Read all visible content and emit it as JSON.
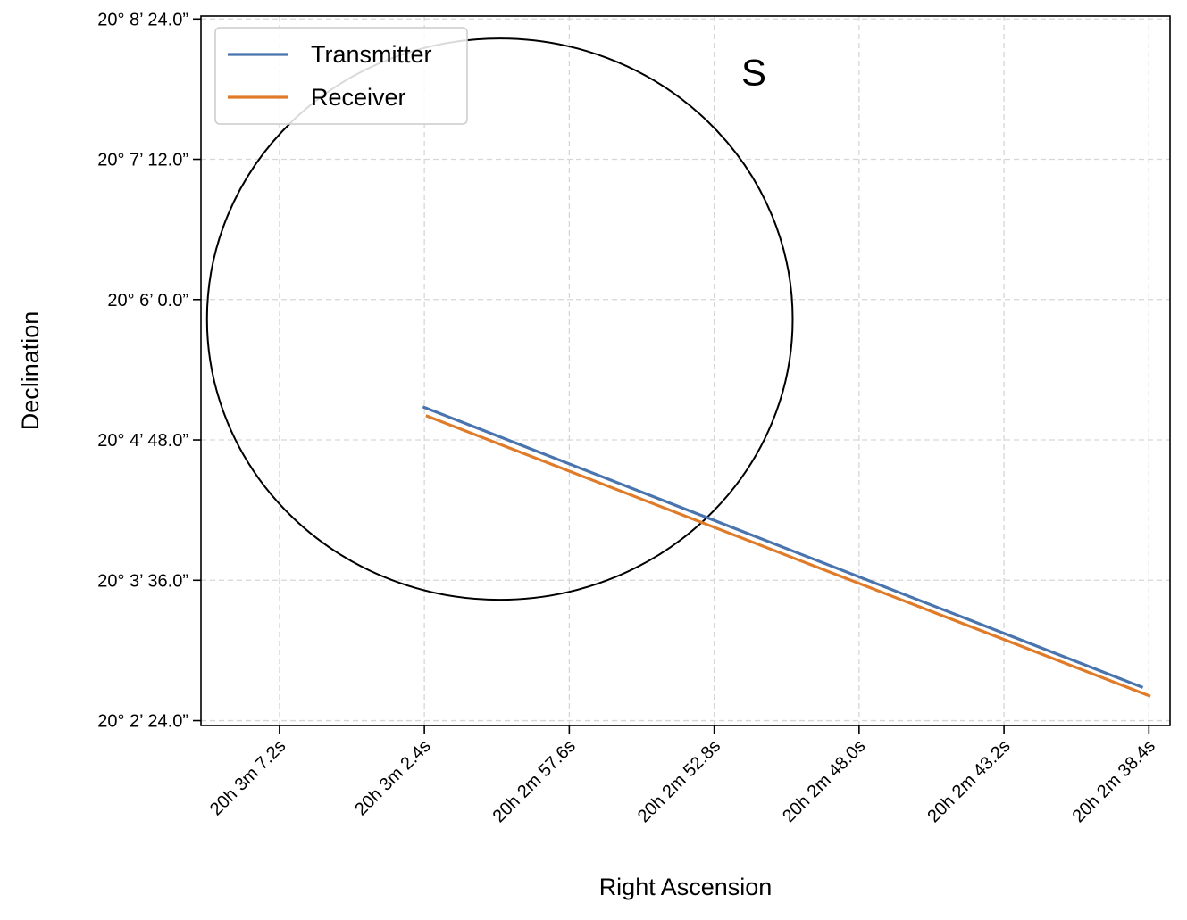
{
  "chart_data": {
    "type": "line",
    "title": "",
    "xlabel": "Right Ascension",
    "ylabel": "Declination",
    "x_unit": "RA seconds past 20h 2m (increasing to the left)",
    "y_unit": "Dec arcseconds past 20° 0'",
    "x_inverted": true,
    "xlim": [
      69.8,
      37.7
    ],
    "ylim": [
      141.5,
      505.5
    ],
    "x_ticks": [
      {
        "value": 67.2,
        "label": "20h 3m 7.2s"
      },
      {
        "value": 62.4,
        "label": "20h 3m 2.4s"
      },
      {
        "value": 57.6,
        "label": "20h 2m 57.6s"
      },
      {
        "value": 52.8,
        "label": "20h 2m 52.8s"
      },
      {
        "value": 48.0,
        "label": "20h 2m 48.0s"
      },
      {
        "value": 43.2,
        "label": "20h 2m 43.2s"
      },
      {
        "value": 38.4,
        "label": "20h 2m 38.4s"
      }
    ],
    "y_ticks": [
      {
        "value": 144,
        "label": "20° 2’ 24.0”"
      },
      {
        "value": 216,
        "label": "20° 3’ 36.0”"
      },
      {
        "value": 288,
        "label": "20° 4’ 48.0”"
      },
      {
        "value": 360,
        "label": "20° 6’ 0.0”"
      },
      {
        "value": 432,
        "label": "20° 7’ 12.0”"
      },
      {
        "value": 504,
        "label": "20° 8’ 24.0”"
      }
    ],
    "grid": true,
    "grid_style": "dashed",
    "legend_position": "top-left",
    "series": [
      {
        "name": "Transmitter",
        "color": "#4a74ae",
        "x": [
          62.45,
          38.6
        ],
        "y": [
          305.0,
          161.0
        ]
      },
      {
        "name": "Receiver",
        "color": "#df7b29",
        "x": [
          62.35,
          38.35
        ],
        "y": [
          300.5,
          156.5
        ]
      }
    ],
    "annotations": [
      {
        "type": "circle",
        "center": [
          59.9,
          350.0
        ],
        "radius_x": 9.7,
        "radius_y": 144.0,
        "color": "#000000"
      },
      {
        "type": "text",
        "text": "S",
        "x": 51.9,
        "y": 470.0
      }
    ]
  }
}
